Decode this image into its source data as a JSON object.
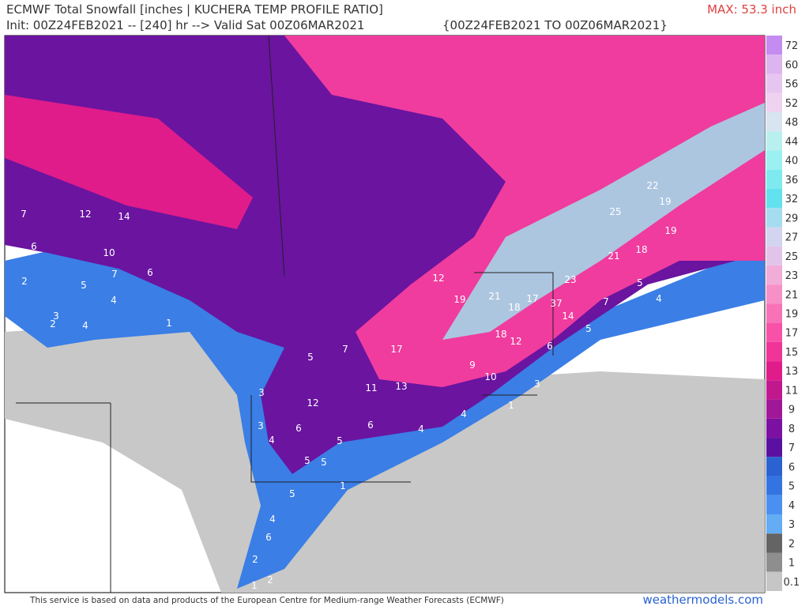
{
  "header": {
    "title": "ECMWF Total Snowfall [inches | KUCHERA TEMP PROFILE RATIO]",
    "init": "Init: 00Z24FEB2021 -- [240] hr --> Valid Sat 00Z06MAR2021",
    "period": "{00Z24FEB2021 TO 00Z06MAR2021}",
    "max": "MAX: 53.3 inch"
  },
  "colorbar": {
    "levels": [
      72,
      60,
      56,
      52,
      48,
      44,
      40,
      36,
      32,
      29,
      27,
      25,
      23,
      21,
      19,
      17,
      15,
      13,
      11,
      9,
      8,
      7,
      6,
      5,
      4,
      3,
      2,
      1,
      0.1
    ],
    "colors": [
      "#c48cf0",
      "#dcb4f0",
      "#e6c6f0",
      "#eed2f0",
      "#d8e4f0",
      "#b8f0f0",
      "#9cf0f2",
      "#7eeaf0",
      "#62e2ee",
      "#a4dcf0",
      "#d2d4f0",
      "#e2c4ea",
      "#f2acd8",
      "#f890c8",
      "#f872b8",
      "#f852a8",
      "#f03498",
      "#e01c8a",
      "#c2188e",
      "#a01898",
      "#7c10a0",
      "#5a10a0",
      "#2a62d2",
      "#3474e2",
      "#4a90f0",
      "#64acf4",
      "#646464",
      "#8e8e8e",
      "#c6c6c6"
    ]
  },
  "map_labels": [
    7,
    12,
    14,
    6,
    10,
    7,
    6,
    2,
    5,
    4,
    3,
    2,
    4,
    1,
    5,
    7,
    17,
    12,
    19,
    21,
    18,
    17,
    37,
    23,
    14,
    25,
    22,
    19,
    19,
    21,
    18,
    5,
    7,
    4,
    5,
    6,
    18,
    12,
    9,
    10,
    13,
    11,
    3,
    1,
    4,
    4,
    6,
    12,
    3,
    3,
    6,
    4,
    5,
    5,
    5,
    1,
    5,
    4,
    6,
    2,
    1,
    2
  ],
  "footer": {
    "credit": "This service is based on data and products of the European Centre for Medium-range Weather Forecasts (ECMWF)",
    "site": "weathermodels.com"
  }
}
